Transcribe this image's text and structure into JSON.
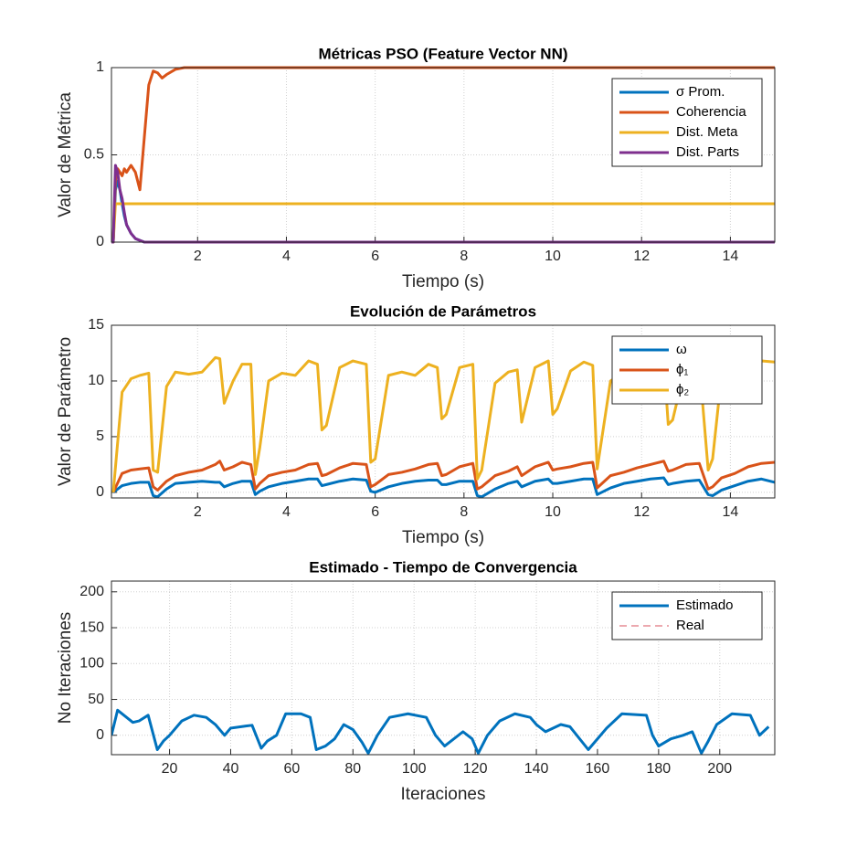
{
  "chart_data": [
    {
      "type": "line",
      "title": "Métricas PSO (Feature Vector NN)",
      "xlabel": "Tiempo (s)",
      "ylabel": "Valor de Métrica",
      "xlim": [
        0.06,
        15
      ],
      "xticks": [
        2,
        4,
        6,
        8,
        10,
        12,
        14
      ],
      "ylim": [
        0,
        1
      ],
      "yticks": [
        0,
        0.5,
        1
      ],
      "grid": true,
      "legend": "northeast",
      "series": [
        {
          "name": "σ Prom.",
          "color": "#0072BD",
          "x": [
            0.06,
            0.1,
            0.15,
            0.2,
            0.25,
            0.3,
            0.35,
            0.4,
            0.5,
            0.6,
            0.7,
            0.8,
            0.9,
            1.0,
            1.1,
            1.2,
            1.3,
            1.5,
            1.7,
            2,
            3,
            15
          ],
          "values": [
            0,
            0,
            0.3,
            0.35,
            0.3,
            0.22,
            0.15,
            0.1,
            0.05,
            0.02,
            0.01,
            0,
            0,
            0,
            0,
            0,
            0,
            0,
            0,
            0,
            0,
            0
          ]
        },
        {
          "name": "Coherencia",
          "color": "#D95319",
          "x": [
            0.06,
            0.1,
            0.15,
            0.2,
            0.25,
            0.3,
            0.35,
            0.4,
            0.5,
            0.6,
            0.7,
            0.8,
            0.9,
            1.0,
            1.1,
            1.2,
            1.3,
            1.5,
            1.7,
            2,
            3,
            15
          ],
          "values": [
            0,
            0,
            0.35,
            0.42,
            0.4,
            0.38,
            0.42,
            0.4,
            0.44,
            0.4,
            0.3,
            0.6,
            0.9,
            0.98,
            0.97,
            0.94,
            0.96,
            0.99,
            1,
            1,
            1,
            1
          ]
        },
        {
          "name": "Dist. Meta",
          "color": "#EDB120",
          "x": [
            0.06,
            0.1,
            0.15,
            0.2,
            15
          ],
          "values": [
            0,
            0,
            0.22,
            0.22,
            0.22
          ]
        },
        {
          "name": "Dist. Parts",
          "color": "#7E2F8E",
          "x": [
            0.06,
            0.1,
            0.15,
            0.2,
            0.25,
            0.3,
            0.35,
            0.4,
            0.5,
            0.6,
            0.7,
            0.8,
            0.9,
            1.0,
            2,
            15
          ],
          "values": [
            0,
            0,
            0.44,
            0.4,
            0.3,
            0.25,
            0.17,
            0.1,
            0.05,
            0.02,
            0.01,
            0,
            0,
            0,
            0,
            0
          ]
        }
      ]
    },
    {
      "type": "line",
      "title": "Evolución de Parámetros",
      "xlabel": "Tiempo (s)",
      "ylabel": "Valor de Parámetro",
      "xlim": [
        0.06,
        15
      ],
      "xticks": [
        2,
        4,
        6,
        8,
        10,
        12,
        14
      ],
      "ylim": [
        -0.5,
        15
      ],
      "yticks": [
        0,
        5,
        10,
        15
      ],
      "grid": true,
      "legend": "northeast",
      "series": [
        {
          "name": "ω",
          "color": "#0072BD",
          "x": [
            0.1,
            0.3,
            0.5,
            0.7,
            0.9,
            1.0,
            1.1,
            1.3,
            1.5,
            1.8,
            2.1,
            2.4,
            2.5,
            2.6,
            2.8,
            3.0,
            3.2,
            3.3,
            3.4,
            3.6,
            3.9,
            4.2,
            4.5,
            4.7,
            4.8,
            4.9,
            5.2,
            5.5,
            5.8,
            5.9,
            6.0,
            6.3,
            6.6,
            6.9,
            7.2,
            7.4,
            7.5,
            7.6,
            7.9,
            8.2,
            8.3,
            8.4,
            8.7,
            9.0,
            9.2,
            9.3,
            9.6,
            9.9,
            10.0,
            10.1,
            10.4,
            10.7,
            10.9,
            11.0,
            11.3,
            11.6,
            11.9,
            12.2,
            12.5,
            12.6,
            12.7,
            13.0,
            13.3,
            13.5,
            13.6,
            13.8,
            14.1,
            14.4,
            14.7,
            15.0
          ],
          "values": [
            0,
            0.6,
            0.8,
            0.9,
            0.9,
            -0.3,
            -0.4,
            0.3,
            0.8,
            0.9,
            1.0,
            0.9,
            0.9,
            0.5,
            0.8,
            1.0,
            1.0,
            -0.2,
            0.1,
            0.5,
            0.8,
            1.0,
            1.2,
            1.2,
            0.6,
            0.7,
            1.0,
            1.2,
            1.1,
            0.1,
            0.0,
            0.5,
            0.8,
            1.0,
            1.1,
            1.1,
            0.7,
            0.7,
            1.0,
            1.0,
            -0.3,
            -0.4,
            0.3,
            0.8,
            1.0,
            0.5,
            1.0,
            1.2,
            0.8,
            0.8,
            1.0,
            1.2,
            1.2,
            -0.2,
            0.4,
            0.8,
            1.0,
            1.2,
            1.3,
            0.7,
            0.8,
            1.0,
            1.1,
            -0.2,
            -0.3,
            0.2,
            0.6,
            1.0,
            1.2,
            0.9
          ]
        },
        {
          "name": "ϕ₁",
          "color": "#D95319",
          "x": [
            0.1,
            0.3,
            0.5,
            0.7,
            0.9,
            1.0,
            1.1,
            1.3,
            1.5,
            1.8,
            2.1,
            2.4,
            2.5,
            2.6,
            2.8,
            3.0,
            3.2,
            3.3,
            3.4,
            3.6,
            3.9,
            4.2,
            4.5,
            4.7,
            4.8,
            4.9,
            5.2,
            5.5,
            5.8,
            5.9,
            6.0,
            6.3,
            6.6,
            6.9,
            7.2,
            7.4,
            7.5,
            7.6,
            7.9,
            8.2,
            8.3,
            8.4,
            8.7,
            9.0,
            9.2,
            9.3,
            9.6,
            9.9,
            10.0,
            10.1,
            10.4,
            10.7,
            10.9,
            11.0,
            11.3,
            11.6,
            11.9,
            12.2,
            12.5,
            12.6,
            12.7,
            13.0,
            13.3,
            13.5,
            13.6,
            13.8,
            14.1,
            14.4,
            14.7,
            15.0
          ],
          "values": [
            0,
            1.7,
            2.0,
            2.1,
            2.2,
            0.5,
            0.2,
            1.0,
            1.5,
            1.8,
            2.0,
            2.5,
            2.8,
            2.0,
            2.3,
            2.7,
            2.5,
            0.3,
            0.8,
            1.5,
            1.8,
            2.0,
            2.5,
            2.6,
            1.5,
            1.6,
            2.2,
            2.6,
            2.5,
            0.5,
            0.7,
            1.6,
            1.8,
            2.1,
            2.5,
            2.6,
            1.5,
            1.6,
            2.3,
            2.6,
            0.3,
            0.5,
            1.5,
            1.9,
            2.3,
            1.5,
            2.3,
            2.7,
            2.0,
            2.1,
            2.3,
            2.6,
            2.7,
            0.4,
            1.5,
            1.8,
            2.2,
            2.5,
            2.8,
            1.9,
            2.0,
            2.5,
            2.6,
            0.3,
            0.5,
            1.3,
            1.7,
            2.3,
            2.6,
            2.7
          ]
        },
        {
          "name": "ϕ₂",
          "color": "#EDB120",
          "x": [
            0.1,
            0.3,
            0.5,
            0.7,
            0.9,
            1.0,
            1.1,
            1.3,
            1.5,
            1.8,
            2.1,
            2.4,
            2.5,
            2.6,
            2.8,
            3.0,
            3.2,
            3.3,
            3.4,
            3.6,
            3.9,
            4.2,
            4.5,
            4.7,
            4.8,
            4.9,
            5.2,
            5.5,
            5.8,
            5.9,
            6.0,
            6.3,
            6.6,
            6.9,
            7.2,
            7.4,
            7.5,
            7.6,
            7.9,
            8.2,
            8.3,
            8.4,
            8.7,
            9.0,
            9.2,
            9.3,
            9.6,
            9.9,
            10.0,
            10.1,
            10.4,
            10.7,
            10.9,
            11.0,
            11.3,
            11.6,
            11.9,
            12.2,
            12.5,
            12.6,
            12.7,
            13.0,
            13.3,
            13.5,
            13.6,
            13.8,
            14.1,
            14.4,
            14.7,
            15.0
          ],
          "values": [
            0,
            9,
            10.2,
            10.5,
            10.7,
            2,
            1.8,
            9.5,
            10.8,
            10.6,
            10.8,
            12.1,
            12,
            8,
            10,
            11.5,
            11.5,
            1.6,
            4,
            10,
            10.7,
            10.5,
            11.8,
            11.5,
            5.6,
            6,
            11.2,
            11.8,
            11.5,
            2.7,
            3,
            10.5,
            10.8,
            10.5,
            11.5,
            11.2,
            6.6,
            7,
            11.2,
            11.5,
            1.2,
            2,
            9.8,
            10.8,
            11,
            6.3,
            11.2,
            11.8,
            7,
            7.5,
            10.9,
            11.7,
            11.4,
            2.1,
            10,
            10.8,
            10.6,
            11,
            12,
            6.1,
            6.5,
            11.5,
            11.6,
            2.0,
            3,
            10.5,
            11,
            11.5,
            11.8,
            11.7
          ]
        }
      ]
    },
    {
      "type": "line",
      "title": "Estimado - Tiempo de Convergencia",
      "xlabel": "Iteraciones",
      "ylabel": "No Iteraciones",
      "xlim": [
        1,
        218
      ],
      "xticks": [
        20,
        40,
        60,
        80,
        100,
        120,
        140,
        160,
        180,
        200
      ],
      "ylim": [
        -27,
        215
      ],
      "yticks": [
        0,
        50,
        100,
        150,
        200
      ],
      "grid": true,
      "legend": "northeast",
      "series": [
        {
          "name": "Estimado",
          "color": "#0072BD",
          "x": [
            1,
            3,
            8,
            10,
            13,
            16,
            18,
            20,
            24,
            28,
            32,
            35,
            38,
            40,
            45,
            47,
            50,
            52,
            55,
            58,
            63,
            66,
            68,
            71,
            74,
            77,
            80,
            83,
            85,
            88,
            92,
            98,
            104,
            107,
            110,
            116,
            119,
            121,
            124,
            128,
            133,
            138,
            140,
            143,
            148,
            151,
            157,
            159,
            163,
            168,
            176,
            178,
            180,
            184,
            188,
            191,
            194,
            196,
            199,
            204,
            210,
            213,
            216
          ],
          "values": [
            0,
            35,
            18,
            20,
            28,
            -20,
            -8,
            0,
            20,
            28,
            25,
            15,
            0,
            10,
            13,
            14,
            -18,
            -8,
            0,
            30,
            30,
            25,
            -20,
            -15,
            -5,
            15,
            8,
            -10,
            -25,
            0,
            25,
            30,
            25,
            0,
            -15,
            5,
            -5,
            -25,
            0,
            20,
            30,
            25,
            15,
            5,
            15,
            12,
            -20,
            -10,
            10,
            30,
            28,
            0,
            -15,
            -5,
            0,
            5,
            -25,
            -10,
            15,
            30,
            28,
            0,
            12
          ]
        },
        {
          "name": "Real",
          "color": "#D9535F",
          "dash": true,
          "x": [
            1,
            218
          ],
          "values": [
            215,
            215
          ]
        }
      ]
    }
  ]
}
